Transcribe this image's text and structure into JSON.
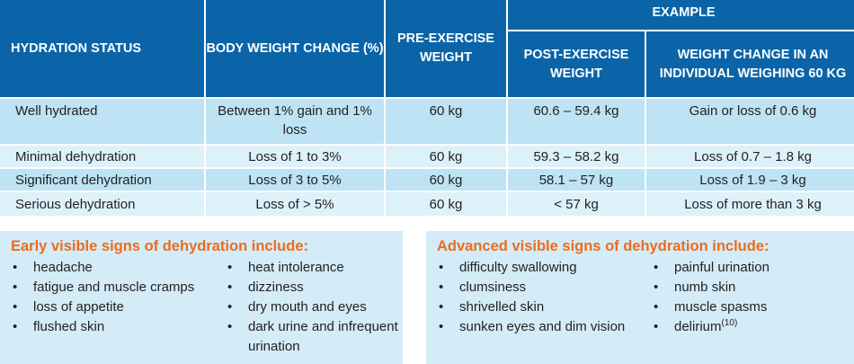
{
  "table": {
    "headers": {
      "hydration_status": "HYDRATION STATUS",
      "body_weight_change": "BODY WEIGHT CHANGE (%)",
      "pre_exercise_weight": "PRE-EXERCISE WEIGHT",
      "example": "EXAMPLE",
      "post_exercise_weight": "POST-EXERCISE WEIGHT",
      "weight_change_example": "WEIGHT CHANGE IN AN INDIVIDUAL WEIGHING 60 KG"
    },
    "rows": [
      {
        "status": "Well hydrated",
        "body_weight_change": "Between 1% gain and 1% loss",
        "pre_exercise_weight": "60 kg",
        "post_exercise_weight": "60.6 – 59.4 kg",
        "weight_change": "Gain or loss of 0.6 kg"
      },
      {
        "status": "Minimal dehydration",
        "body_weight_change": "Loss of 1 to 3%",
        "pre_exercise_weight": "60 kg",
        "post_exercise_weight": "59.3 – 58.2 kg",
        "weight_change": "Loss of 0.7 – 1.8 kg"
      },
      {
        "status": "Significant dehydration",
        "body_weight_change": "Loss of 3 to 5%",
        "pre_exercise_weight": "60 kg",
        "post_exercise_weight": "58.1 – 57 kg",
        "weight_change": "Loss of 1.9 – 3 kg"
      },
      {
        "status": "Serious dehydration",
        "body_weight_change": "Loss of > 5%",
        "pre_exercise_weight": "60 kg",
        "post_exercise_weight": "< 57 kg",
        "weight_change": "Loss of more than 3 kg"
      }
    ]
  },
  "early_signs": {
    "title": "Early visible signs of dehydration include:",
    "bullet": "•",
    "column1": [
      "headache",
      "fatigue and muscle cramps",
      "loss of appetite",
      "flushed skin"
    ],
    "column2": [
      "heat intolerance",
      "dizziness",
      "dry mouth and eyes",
      "dark urine and infrequent urination"
    ]
  },
  "advanced_signs": {
    "title": "Advanced visible signs of dehydration include:",
    "bullet": "•",
    "column1": [
      "difficulty swallowing",
      "clumsiness",
      "shrivelled skin",
      "sunken eyes and dim vision"
    ],
    "column2": [
      "painful urination",
      "numb skin",
      "muscle spasms",
      "delirium"
    ],
    "delirium_reference": "(10)"
  },
  "colors": {
    "header_blue": "#0b64a8",
    "row_blue_dark": "#bde3f4",
    "row_blue_light": "#ddf1fa",
    "box_background": "#d3ecf8",
    "title_orange": "#ec6c1d"
  }
}
